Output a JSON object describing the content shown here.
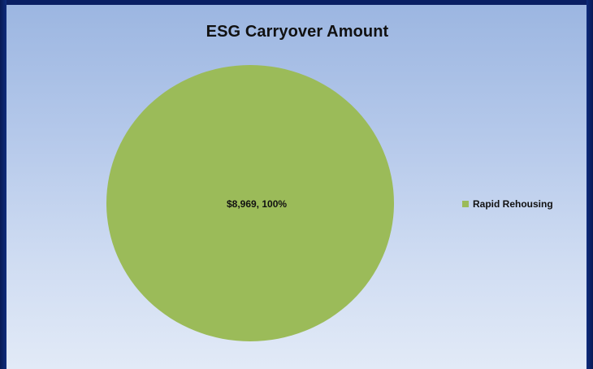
{
  "chart_data": {
    "type": "pie",
    "title": "ESG Carryover Amount",
    "slices": [
      {
        "name": "Rapid Rehousing",
        "value": 8969,
        "percent": 100,
        "label": "$8,969, 100%",
        "color": "#9bbb59"
      }
    ],
    "legend": {
      "position": "right",
      "items": [
        "Rapid Rehousing"
      ]
    }
  },
  "colors": {
    "slide_background": "#0c2266",
    "plot_gradient_top": "#9cb6e1",
    "plot_gradient_bottom": "#e2eaf7",
    "slice_fill": "#9bbb59"
  }
}
